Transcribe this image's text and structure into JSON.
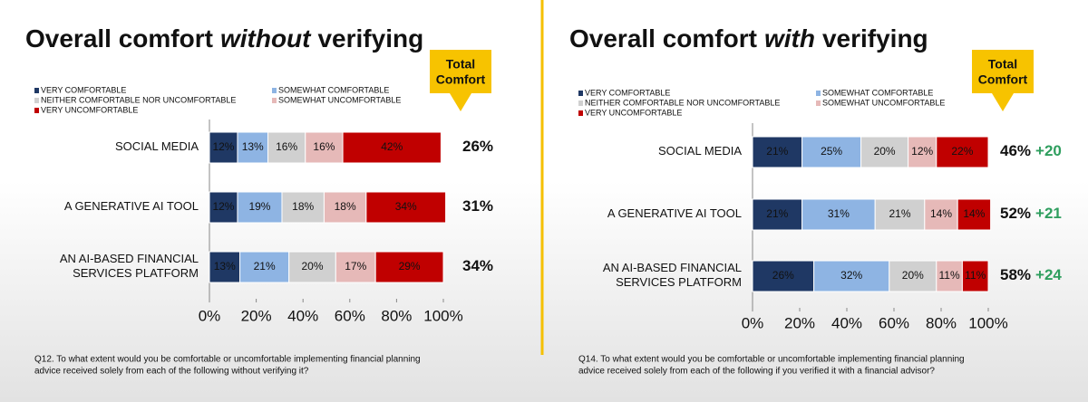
{
  "chart_data": [
    {
      "type": "bar",
      "orientation": "horizontal",
      "stacked": true,
      "title": [
        "Overall comfort",
        "without",
        "verifying"
      ],
      "total_label": "Total\nComfort",
      "categories": [
        "SOCIAL MEDIA",
        "A GENERATIVE AI TOOL",
        "AN AI-BASED FINANCIAL\nSERVICES PLATFORM"
      ],
      "series": [
        {
          "name": "VERY COMFORTABLE",
          "color": "#1f3864",
          "values": [
            12,
            12,
            13
          ],
          "value_labels": [
            "12%",
            "12%",
            "13%"
          ]
        },
        {
          "name": "SOMEWHAT COMFORTABLE",
          "color": "#8eb4e3",
          "values": [
            13,
            19,
            21
          ],
          "value_labels": [
            "13%",
            "19%",
            "21%"
          ]
        },
        {
          "name": "NEITHER COMFORTABLE NOR UNCOMFORTABLE",
          "color": "#d0d0d0",
          "values": [
            16,
            18,
            20
          ],
          "value_labels": [
            "16%",
            "18%",
            "20%"
          ]
        },
        {
          "name": "SOMEWHAT UNCOMFORTABLE",
          "color": "#e6b9b8",
          "values": [
            16,
            18,
            17
          ],
          "value_labels": [
            "16%",
            "18%",
            "17%"
          ]
        },
        {
          "name": "VERY UNCOMFORTABLE",
          "color": "#c00000",
          "values": [
            42,
            34,
            29
          ],
          "value_labels": [
            "42%",
            "34%",
            "29%"
          ]
        }
      ],
      "totals": {
        "values": [
          26,
          31,
          34
        ],
        "value_labels": [
          "26%",
          "31%",
          "34%"
        ]
      },
      "xlim": [
        0,
        100
      ],
      "xticks": [
        {
          "value": 0,
          "label": "0%"
        },
        {
          "value": 20,
          "label": "20%"
        },
        {
          "value": 40,
          "label": "40%"
        },
        {
          "value": 60,
          "label": "60%"
        },
        {
          "value": 80,
          "label": "80%"
        },
        {
          "value": 100,
          "label": "100%"
        }
      ],
      "note": [
        "Q12. To what extent would you be comfortable or uncomfortable implementing financial planning",
        "advice received solely from each of the following without verifying it?"
      ]
    },
    {
      "type": "bar",
      "orientation": "horizontal",
      "stacked": true,
      "title": [
        "Overall comfort",
        "with",
        "verifying"
      ],
      "total_label": "Total\nComfort",
      "categories": [
        "SOCIAL MEDIA",
        "A GENERATIVE AI TOOL",
        "AN AI-BASED FINANCIAL\nSERVICES PLATFORM"
      ],
      "series": [
        {
          "name": "VERY COMFORTABLE",
          "color": "#1f3864",
          "values": [
            21,
            21,
            26
          ],
          "value_labels": [
            "21%",
            "21%",
            "26%"
          ]
        },
        {
          "name": "SOMEWHAT COMFORTABLE",
          "color": "#8eb4e3",
          "values": [
            25,
            31,
            32
          ],
          "value_labels": [
            "25%",
            "31%",
            "32%"
          ]
        },
        {
          "name": "NEITHER COMFORTABLE NOR UNCOMFORTABLE",
          "color": "#d0d0d0",
          "values": [
            20,
            21,
            20
          ],
          "value_labels": [
            "20%",
            "21%",
            "20%"
          ]
        },
        {
          "name": "SOMEWHAT UNCOMFORTABLE",
          "color": "#e6b9b8",
          "values": [
            12,
            14,
            11
          ],
          "value_labels": [
            "12%",
            "14%",
            "11%"
          ]
        },
        {
          "name": "VERY UNCOMFORTABLE",
          "color": "#c00000",
          "values": [
            22,
            14,
            11
          ],
          "value_labels": [
            "22%",
            "14%",
            "11%"
          ]
        }
      ],
      "totals": {
        "values": [
          46,
          52,
          58
        ],
        "value_labels": [
          "46%",
          "52%",
          "58%"
        ]
      },
      "changes": {
        "values": [
          20,
          21,
          24
        ],
        "value_labels": [
          "+20",
          "+21",
          "+24"
        ],
        "color": "#2e9e5e"
      },
      "xlim": [
        0,
        100
      ],
      "xticks": [
        {
          "value": 0,
          "label": "0%"
        },
        {
          "value": 20,
          "label": "20%"
        },
        {
          "value": 40,
          "label": "40%"
        },
        {
          "value": 60,
          "label": "60%"
        },
        {
          "value": 80,
          "label": "80%"
        },
        {
          "value": 100,
          "label": "100%"
        }
      ],
      "note": [
        "Q14. To what extent would you be comfortable or uncomfortable implementing financial planning",
        "advice received solely from each of the following if you verified it with a financial advisor?"
      ]
    }
  ]
}
